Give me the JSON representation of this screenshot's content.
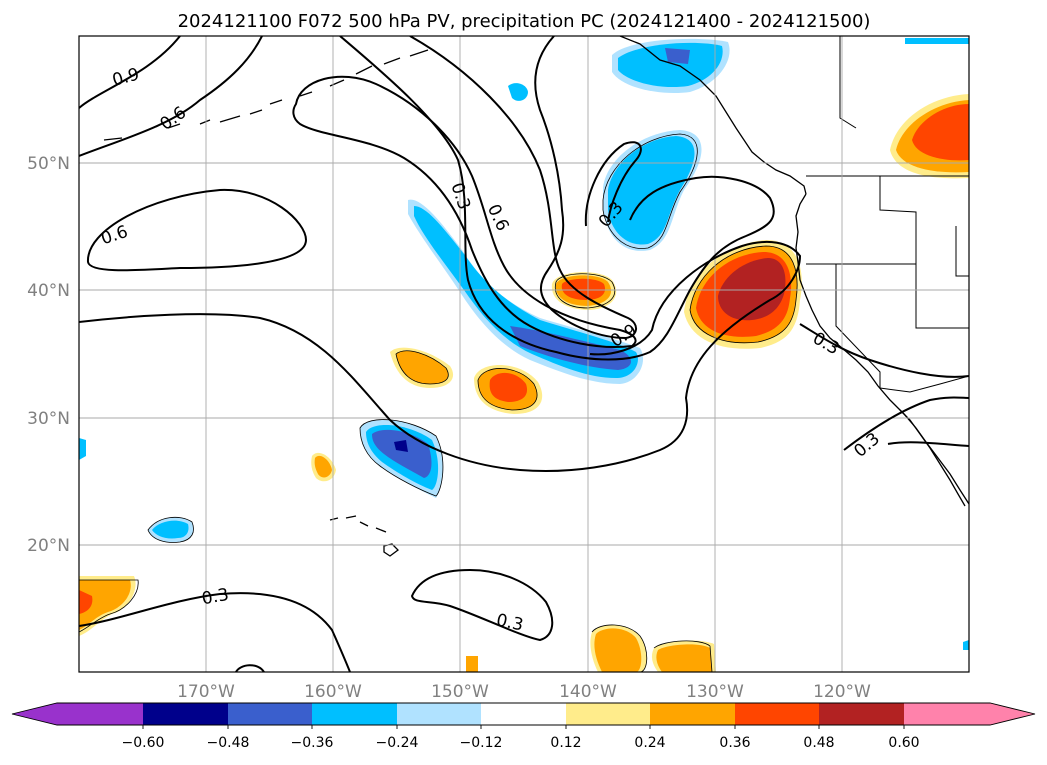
{
  "title": "2024121100 F072 500 hPa PV, precipitation PC (2024121400 - 2024121500)",
  "colors": {
    "c_lt060": "#9932cc",
    "c_060": "#00008b",
    "c_048": "#3a5fcd",
    "c_036": "#00bfff",
    "c_024": "#b0e2ff",
    "c_012": "#ffffff",
    "c_p012": "#ffec8b",
    "c_p024": "#ffa500",
    "c_p036": "#ff4500",
    "c_p048": "#b22222",
    "c_p060": "#ff82ab"
  },
  "lat_labels": [
    "50°N",
    "40°N",
    "30°N",
    "20°N"
  ],
  "lon_labels": [
    "170°W",
    "160°W",
    "150°W",
    "140°W",
    "130°W",
    "120°W"
  ],
  "colorbar": {
    "ticks": [
      "−0.60",
      "−0.48",
      "−0.36",
      "−0.24",
      "−0.12",
      "0.12",
      "0.24",
      "0.36",
      "0.48",
      "0.60"
    ]
  },
  "contour_labels": [
    "0.9",
    "0.6",
    "0.6",
    "0.3",
    "0.6",
    "0.3",
    "0.9",
    "0.3",
    "0.3",
    "0.3",
    "0.3"
  ]
}
